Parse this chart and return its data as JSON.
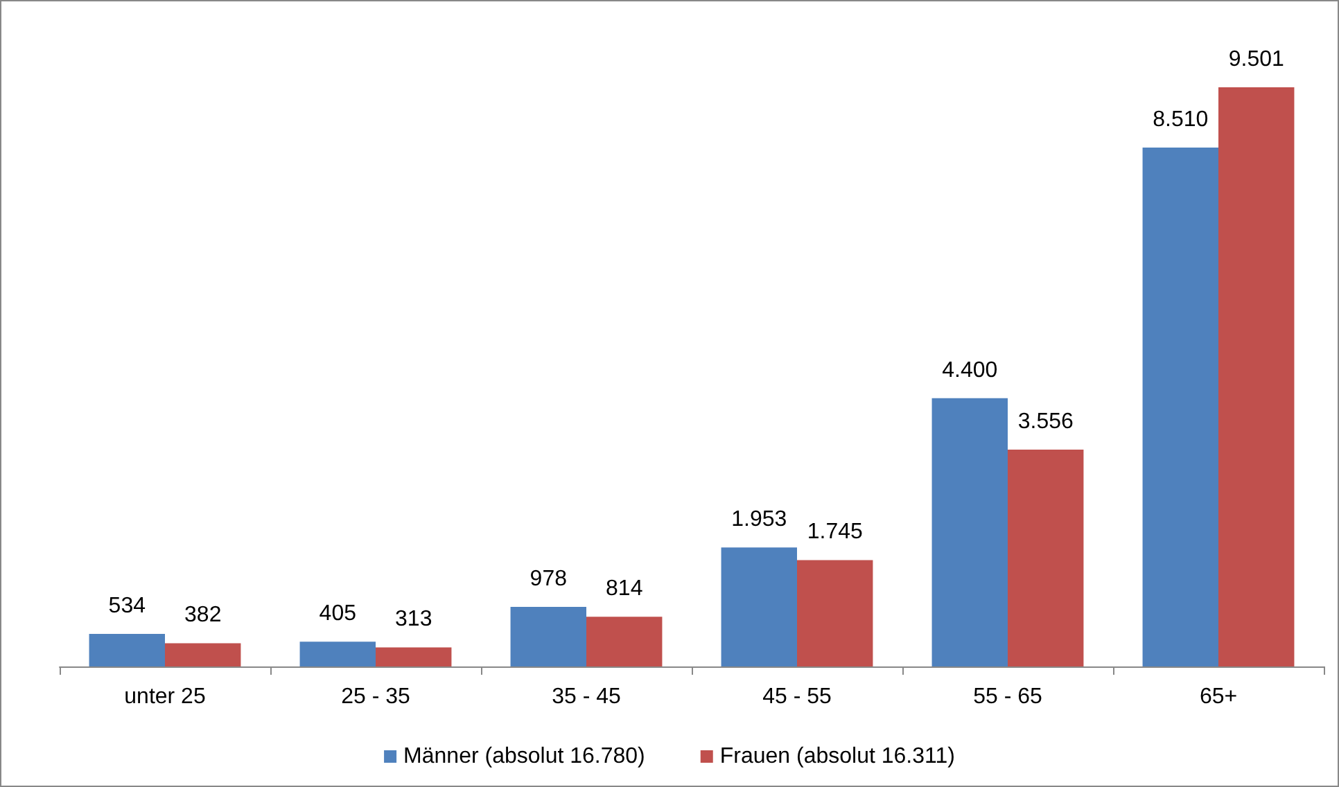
{
  "chart_data": {
    "type": "bar",
    "categories": [
      "unter 25",
      "25 - 35",
      "35 - 45",
      "45 - 55",
      "55 - 65",
      "65+"
    ],
    "series": [
      {
        "name": "Männer (absolut 16.780)",
        "color": "#4f81bd",
        "values": [
          534,
          405,
          978,
          1953,
          4400,
          8510
        ],
        "value_labels": [
          "534",
          "405",
          "978",
          "1.953",
          "4.400",
          "8.510"
        ]
      },
      {
        "name": "Frauen (absolut 16.311)",
        "color": "#c0504d",
        "values": [
          382,
          313,
          814,
          1745,
          3556,
          9501
        ],
        "value_labels": [
          "382",
          "313",
          "814",
          "1.745",
          "3.556",
          "9.501"
        ]
      }
    ],
    "legend": "bottom"
  }
}
